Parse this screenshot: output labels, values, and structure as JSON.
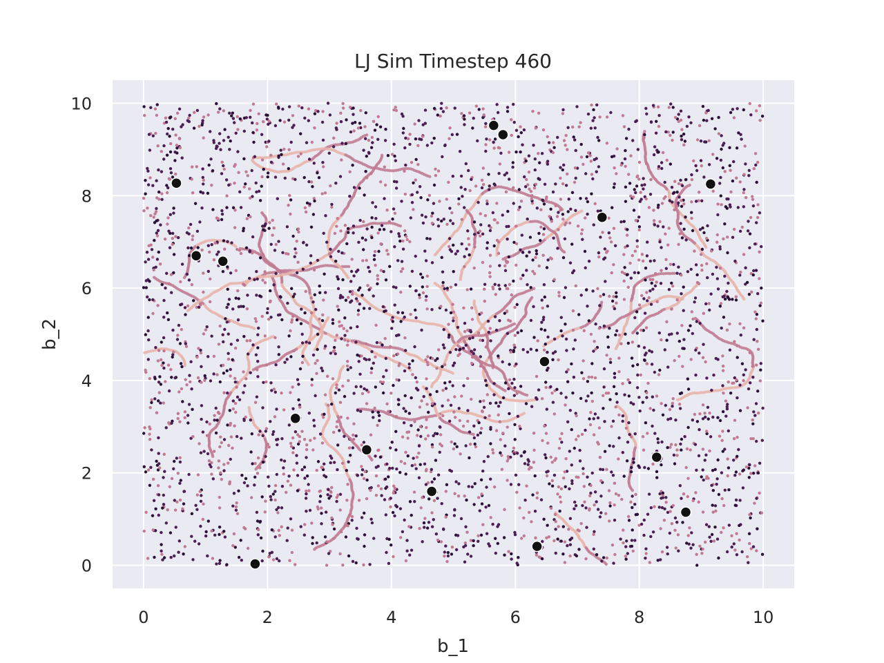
{
  "chart_data": {
    "type": "scatter",
    "title": "LJ Sim Timestep 460",
    "xlabel": "b_1",
    "ylabel": "b_2",
    "xlim": [
      -0.5,
      10.5
    ],
    "ylim": [
      -0.5,
      10.5
    ],
    "x_ticks": [
      "0",
      "2",
      "4",
      "6",
      "8",
      "10"
    ],
    "y_ticks": [
      "0",
      "2",
      "4",
      "6",
      "8",
      "10"
    ],
    "grid": true,
    "colors": {
      "background": "#eaeaf2",
      "grid": "#ffffff",
      "heavy_particles": "#111111",
      "trail_light": "#e8b4aa",
      "trail_mid": "#c07a92",
      "trail_dark": "#4b1f52",
      "trail_darkest": "#2a1236"
    },
    "series": [
      {
        "values": [
          [
            0.53,
            8.27
          ],
          [
            0.85,
            6.7
          ],
          [
            1.28,
            6.58
          ],
          [
            1.8,
            0.03
          ],
          [
            2.45,
            3.18
          ],
          [
            3.6,
            2.5
          ],
          [
            4.65,
            1.6
          ],
          [
            5.65,
            9.52
          ],
          [
            5.8,
            9.32
          ],
          [
            6.35,
            0.41
          ],
          [
            6.47,
            4.41
          ],
          [
            7.4,
            7.53
          ],
          [
            8.28,
            2.34
          ],
          [
            8.75,
            1.15
          ],
          [
            9.15,
            8.25
          ]
        ]
      }
    ]
  }
}
